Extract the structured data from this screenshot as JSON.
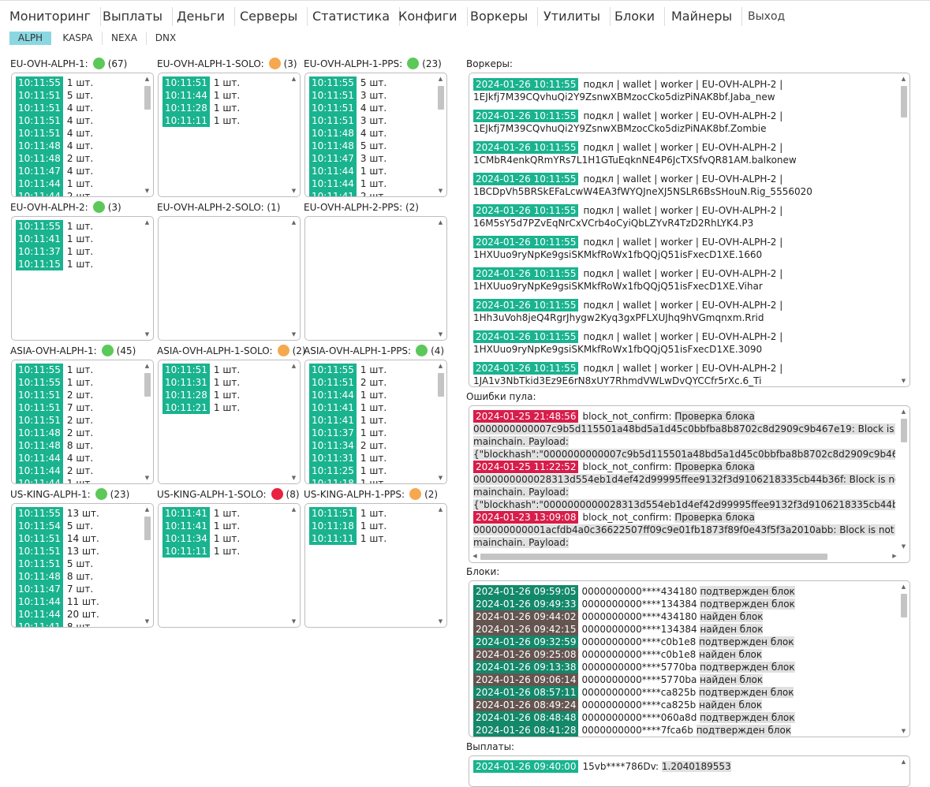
{
  "nav": [
    {
      "label": "Мониторинг"
    },
    {
      "label": "Выплаты"
    },
    {
      "label": "Деньги"
    },
    {
      "label": "Серверы"
    },
    {
      "label": "Статистика"
    },
    {
      "label": "Конфиги"
    },
    {
      "label": "Воркеры"
    },
    {
      "label": "Утилиты"
    },
    {
      "label": "Блоки"
    },
    {
      "label": "Майнеры"
    },
    {
      "label": "Выход"
    }
  ],
  "coins": [
    {
      "label": "ALPH",
      "active": true
    },
    {
      "label": "KASPA",
      "active": false
    },
    {
      "label": "NEXA",
      "active": false
    },
    {
      "label": "DNX",
      "active": false
    }
  ],
  "colors": {
    "green": "#1ab38f",
    "dot_green": "#5cc85a",
    "dot_orange": "#f5a84e",
    "dot_red": "#e8223f",
    "error_red": "#d71e4a",
    "block_confirmed": "#14886a",
    "block_found": "#655551",
    "coin_active": "#8ad7e1"
  },
  "pools": [
    {
      "name": "EU-OVH-ALPH-1:",
      "status": "green",
      "count": "(67)",
      "rows": [
        [
          "10:11:55",
          "1 шт."
        ],
        [
          "10:11:51",
          "5 шт."
        ],
        [
          "10:11:51",
          "4 шт."
        ],
        [
          "10:11:51",
          "4 шт."
        ],
        [
          "10:11:51",
          "4 шт."
        ],
        [
          "10:11:48",
          "4 шт."
        ],
        [
          "10:11:48",
          "2 шт."
        ],
        [
          "10:11:47",
          "4 шт."
        ],
        [
          "10:11:44",
          "1 шт."
        ],
        [
          "10:11:44",
          "2 шт."
        ]
      ],
      "scroll": true
    },
    {
      "name": "EU-OVH-ALPH-1-SOLO:",
      "status": "orange",
      "count": "(3)",
      "rows": [
        [
          "10:11:51",
          "1 шт."
        ],
        [
          "10:11:44",
          "1 шт."
        ],
        [
          "10:11:28",
          "1 шт."
        ],
        [
          "10:11:11",
          "1 шт."
        ]
      ],
      "scroll": false
    },
    {
      "name": "EU-OVH-ALPH-1-PPS:",
      "status": "green",
      "count": "(23)",
      "rows": [
        [
          "10:11:55",
          "5 шт."
        ],
        [
          "10:11:51",
          "3 шт."
        ],
        [
          "10:11:51",
          "4 шт."
        ],
        [
          "10:11:51",
          "3 шт."
        ],
        [
          "10:11:48",
          "4 шт."
        ],
        [
          "10:11:48",
          "5 шт."
        ],
        [
          "10:11:47",
          "3 шт."
        ],
        [
          "10:11:44",
          "1 шт."
        ],
        [
          "10:11:44",
          "1 шт."
        ],
        [
          "10:11:41",
          "2 шт."
        ]
      ],
      "scroll": true
    },
    {
      "name": "EU-OVH-ALPH-2:",
      "status": "green",
      "count": "(3)",
      "rows": [
        [
          "10:11:55",
          "1 шт."
        ],
        [
          "10:11:41",
          "1 шт."
        ],
        [
          "10:11:37",
          "1 шт."
        ],
        [
          "10:11:15",
          "1 шт."
        ]
      ],
      "scroll": false
    },
    {
      "name": "EU-OVH-ALPH-2-SOLO: (1)",
      "status": "",
      "count": "",
      "rows": [],
      "scroll": false
    },
    {
      "name": "EU-OVH-ALPH-2-PPS: (2)",
      "status": "",
      "count": "",
      "rows": [],
      "scroll": false
    },
    {
      "name": "ASIA-OVH-ALPH-1:",
      "status": "green",
      "count": "(45)",
      "rows": [
        [
          "10:11:55",
          "1 шт."
        ],
        [
          "10:11:55",
          "1 шт."
        ],
        [
          "10:11:51",
          "2 шт."
        ],
        [
          "10:11:51",
          "7 шт."
        ],
        [
          "10:11:51",
          "2 шт."
        ],
        [
          "10:11:48",
          "2 шт."
        ],
        [
          "10:11:48",
          "8 шт."
        ],
        [
          "10:11:44",
          "4 шт."
        ],
        [
          "10:11:44",
          "2 шт."
        ],
        [
          "10:11:44",
          "1 шт."
        ]
      ],
      "scroll": true
    },
    {
      "name": "ASIA-OVH-ALPH-1-SOLO:",
      "status": "orange",
      "count": "(2)",
      "rows": [
        [
          "10:11:51",
          "1 шт."
        ],
        [
          "10:11:31",
          "1 шт."
        ],
        [
          "10:11:28",
          "1 шт."
        ],
        [
          "10:11:21",
          "1 шт."
        ]
      ],
      "scroll": false
    },
    {
      "name": "ASIA-OVH-ALPH-1-PPS:",
      "status": "green",
      "count": "(4)",
      "rows": [
        [
          "10:11:55",
          "1 шт."
        ],
        [
          "10:11:51",
          "2 шт."
        ],
        [
          "10:11:44",
          "1 шт."
        ],
        [
          "10:11:41",
          "1 шт."
        ],
        [
          "10:11:41",
          "1 шт."
        ],
        [
          "10:11:37",
          "1 шт."
        ],
        [
          "10:11:34",
          "2 шт."
        ],
        [
          "10:11:31",
          "1 шт."
        ],
        [
          "10:11:25",
          "1 шт."
        ],
        [
          "10:11:18",
          "1 шт."
        ]
      ],
      "scroll": true
    },
    {
      "name": "US-KING-ALPH-1:",
      "status": "green",
      "count": "(23)",
      "rows": [
        [
          "10:11:55",
          "13 шт."
        ],
        [
          "10:11:54",
          "5 шт."
        ],
        [
          "10:11:51",
          "14 шт."
        ],
        [
          "10:11:51",
          "13 шт."
        ],
        [
          "10:11:51",
          "5 шт."
        ],
        [
          "10:11:48",
          "8 шт."
        ],
        [
          "10:11:47",
          "7 шт."
        ],
        [
          "10:11:44",
          "11 шт."
        ],
        [
          "10:11:44",
          "20 шт."
        ],
        [
          "10:11:41",
          "8 шт."
        ]
      ],
      "scroll": true
    },
    {
      "name": "US-KING-ALPH-1-SOLO:",
      "status": "red",
      "count": "(8)",
      "rows": [
        [
          "10:11:41",
          "1 шт."
        ],
        [
          "10:11:41",
          "1 шт."
        ],
        [
          "10:11:34",
          "1 шт."
        ],
        [
          "10:11:11",
          "1 шт."
        ]
      ],
      "scroll": false
    },
    {
      "name": "US-KING-ALPH-1-PPS:",
      "status": "orange",
      "count": "(2)",
      "rows": [
        [
          "10:11:51",
          "1 шт."
        ],
        [
          "10:11:18",
          "1 шт."
        ],
        [
          "10:11:11",
          "1 шт."
        ]
      ],
      "scroll": false
    }
  ],
  "workers": {
    "title": "Воркеры:",
    "items": [
      {
        "time": "2024-01-26 10:11:55",
        "text": "подкл | wallet | worker | EU-OVH-ALPH-2 |",
        "id": "1EJkfj7M39CQvhuQi2Y9ZsnwXBMzocCko5dizPiNAK8bf.Jaba_new"
      },
      {
        "time": "2024-01-26 10:11:55",
        "text": "подкл | wallet | worker | EU-OVH-ALPH-2 |",
        "id": "1EJkfj7M39CQvhuQi2Y9ZsnwXBMzocCko5dizPiNAK8bf.Zombie"
      },
      {
        "time": "2024-01-26 10:11:55",
        "text": "подкл | wallet | worker | EU-OVH-ALPH-2 |",
        "id": "1CMbR4enkQRmYRs7L1H1GTuEqknNE4P6JcTXSfvQR81AM.balkonew"
      },
      {
        "time": "2024-01-26 10:11:55",
        "text": "подкл | wallet | worker | EU-OVH-ALPH-2 |",
        "id": "1BCDpVh5BRSkEFaLcwW4EA3fWYQJneXJ5NSLR6BsSHouN.Rig_5556020"
      },
      {
        "time": "2024-01-26 10:11:55",
        "text": "подкл | wallet | worker | EU-OVH-ALPH-2 |",
        "id": "16M5sY5d7PZvEqNrCxVCrb4oCyiQbLZYvR4TzD2RhLYK4.P3"
      },
      {
        "time": "2024-01-26 10:11:55",
        "text": "подкл | wallet | worker | EU-OVH-ALPH-2 |",
        "id": "1HXUuo9ryNpKe9gsiSKMkfRoWx1fbQQjQ51isFxecD1XE.1660"
      },
      {
        "time": "2024-01-26 10:11:55",
        "text": "подкл | wallet | worker | EU-OVH-ALPH-2 |",
        "id": "1HXUuo9ryNpKe9gsiSKMkfRoWx1fbQQjQ51isFxecD1XE.Vihar"
      },
      {
        "time": "2024-01-26 10:11:55",
        "text": "подкл | wallet | worker | EU-OVH-ALPH-2 |",
        "id": "1Hh3uVoh8jeQ4RgrJhygw2Kyq3gxPFLXUJhq9hVGmqnxm.Rrid"
      },
      {
        "time": "2024-01-26 10:11:55",
        "text": "подкл | wallet | worker | EU-OVH-ALPH-2 |",
        "id": "1HXUuo9ryNpKe9gsiSKMkfRoWx1fbQQjQ51isFxecD1XE.3090"
      },
      {
        "time": "2024-01-26 10:11:55",
        "text": "подкл | wallet | worker | EU-OVH-ALPH-2 |",
        "id": "1JA1v3NbTkid3Ez9E6rN8xUY7RhmdVWLwDvQYCCfr5rXc.6_Ti"
      }
    ]
  },
  "errors": {
    "title": "Ошибки пула:",
    "items": [
      {
        "time": "2024-01-25 21:48:56",
        "code": "block_not_confirm:",
        "msg": "Проверка блока",
        "lines": [
          "0000000000007c9b5d115501a48bd5a1d45c0bbfba8b8702c8d2909c9b467e19: Block is not in",
          "mainchain. Payload:",
          "{\"blockhash\":\"0000000000007c9b5d115501a48bd5a1d45c0bbfba8b8702c8d2909c9b467e19\",\"coin"
        ]
      },
      {
        "time": "2024-01-25 11:22:52",
        "code": "block_not_confirm:",
        "msg": "Проверка блока",
        "lines": [
          "0000000000028313d554eb1d4ef42d99995ffee9132f3d9106218335cb44b36f: Block is not in",
          "mainchain. Payload:",
          "{\"blockhash\":\"0000000000028313d554eb1d4ef42d99995ffee9132f3d9106218335cb44b36f\",\"coinS"
        ]
      },
      {
        "time": "2024-01-23 13:09:08",
        "code": "block_not_confirm:",
        "msg": "Проверка блока",
        "lines": [
          "000000000001acfdb4a0c36622507ff09c9e01fb1873f89f0e43f5f3a2010abb: Block is not in",
          "mainchain. Payload:"
        ]
      }
    ]
  },
  "blocks": {
    "title": "Блоки:",
    "items": [
      {
        "time": "2024-01-26 09:59:05",
        "hash": "0000000000****434180",
        "status": "подтвержден блок",
        "type": "confirmed"
      },
      {
        "time": "2024-01-26 09:49:33",
        "hash": "0000000000****134384",
        "status": "подтвержден блок",
        "type": "confirmed"
      },
      {
        "time": "2024-01-26 09:44:02",
        "hash": "0000000000****434180",
        "status": "найден блок",
        "type": "found"
      },
      {
        "time": "2024-01-26 09:42:15",
        "hash": "0000000000****134384",
        "status": "найден блок",
        "type": "found"
      },
      {
        "time": "2024-01-26 09:32:59",
        "hash": "0000000000****c0b1e8",
        "status": "подтвержден блок",
        "type": "confirmed"
      },
      {
        "time": "2024-01-26 09:25:08",
        "hash": "0000000000****c0b1e8",
        "status": "найден блок",
        "type": "found"
      },
      {
        "time": "2024-01-26 09:13:38",
        "hash": "0000000000****5770ba",
        "status": "подтвержден блок",
        "type": "confirmed"
      },
      {
        "time": "2024-01-26 09:06:14",
        "hash": "0000000000****5770ba",
        "status": "найден блок",
        "type": "found"
      },
      {
        "time": "2024-01-26 08:57:11",
        "hash": "0000000000****ca825b",
        "status": "подтвержден блок",
        "type": "confirmed"
      },
      {
        "time": "2024-01-26 08:49:24",
        "hash": "0000000000****ca825b",
        "status": "найден блок",
        "type": "found"
      },
      {
        "time": "2024-01-26 08:48:48",
        "hash": "0000000000****060a8d",
        "status": "подтвержден блок",
        "type": "confirmed"
      },
      {
        "time": "2024-01-26 08:41:28",
        "hash": "0000000000****7fca6b",
        "status": "подтвержден блок",
        "type": "confirmed"
      }
    ]
  },
  "payouts": {
    "title": "Выплаты:",
    "items": [
      {
        "time": "2024-01-26 09:40:00",
        "addr": "15vb****786Dv:",
        "amount": "1.2040189553"
      }
    ]
  }
}
